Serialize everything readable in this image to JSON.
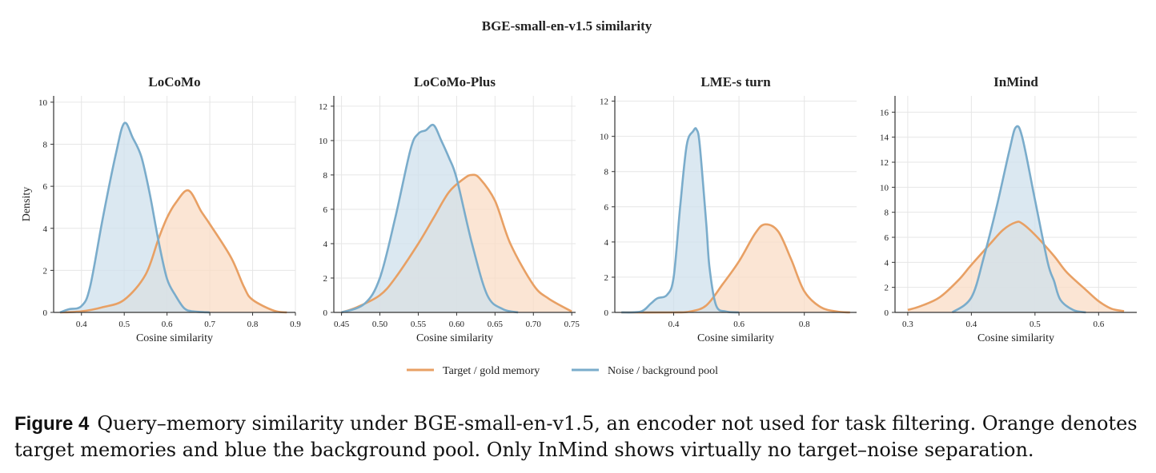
{
  "figure_title": "BGE-small-en-v1.5 similarity",
  "legend": {
    "target_label": "Target / gold memory",
    "noise_label": "Noise / background pool"
  },
  "colors": {
    "target": "#e8a064",
    "target_fill": "#f9dcc5",
    "noise": "#7aaccb",
    "noise_fill": "#cfe0ec",
    "grid": "#e6e6e6",
    "axis": "#333333"
  },
  "caption": {
    "label": "Figure 4",
    "text": "Query–memory similarity under BGE-small-en-v1.5, an encoder not used for task filtering. Orange denotes target memories and blue the background pool. Only InMind shows virtually no target–noise separation."
  },
  "chart_data": [
    {
      "type": "area",
      "title": "LoCoMo",
      "xlabel": "Cosine similarity",
      "ylabel": "Density",
      "xlim": [
        0.335,
        0.9
      ],
      "ylim": [
        0,
        10.3
      ],
      "xticks": [
        "0.4",
        "0.5",
        "0.6",
        "0.7",
        "0.8",
        "0.9"
      ],
      "yticks": [
        "0",
        "2",
        "4",
        "6",
        "8",
        "10"
      ],
      "series": [
        {
          "name": "Target / gold memory",
          "x": [
            0.35,
            0.4,
            0.45,
            0.5,
            0.55,
            0.58,
            0.6,
            0.62,
            0.65,
            0.68,
            0.7,
            0.75,
            0.78,
            0.8,
            0.85,
            0.88
          ],
          "y": [
            0.0,
            0.05,
            0.25,
            0.6,
            1.8,
            3.5,
            4.5,
            5.2,
            5.8,
            4.8,
            4.2,
            2.6,
            1.2,
            0.6,
            0.08,
            0.0
          ]
        },
        {
          "name": "Noise / background pool",
          "x": [
            0.35,
            0.37,
            0.4,
            0.42,
            0.45,
            0.48,
            0.5,
            0.52,
            0.54,
            0.56,
            0.58,
            0.6,
            0.62,
            0.64,
            0.66,
            0.7
          ],
          "y": [
            0.0,
            0.15,
            0.3,
            1.2,
            4.5,
            7.5,
            9.0,
            8.3,
            7.4,
            5.6,
            3.4,
            1.6,
            0.8,
            0.2,
            0.05,
            0.0
          ]
        }
      ]
    },
    {
      "type": "area",
      "title": "LoCoMo-Plus",
      "xlabel": "Cosine similarity",
      "ylabel": "",
      "xlim": [
        0.44,
        0.755
      ],
      "ylim": [
        0,
        12.6
      ],
      "xticks": [
        "0.45",
        "0.50",
        "0.55",
        "0.60",
        "0.65",
        "0.70",
        "0.75"
      ],
      "yticks": [
        "0",
        "2",
        "4",
        "6",
        "8",
        "10",
        "12"
      ],
      "series": [
        {
          "name": "Target / gold memory",
          "x": [
            0.45,
            0.47,
            0.5,
            0.52,
            0.55,
            0.57,
            0.59,
            0.61,
            0.62,
            0.63,
            0.65,
            0.67,
            0.7,
            0.72,
            0.75
          ],
          "y": [
            0.0,
            0.3,
            1.0,
            2.0,
            4.0,
            5.5,
            7.0,
            7.8,
            8.0,
            7.8,
            6.5,
            4.0,
            1.6,
            0.8,
            0.05
          ]
        },
        {
          "name": "Noise / background pool",
          "x": [
            0.45,
            0.48,
            0.5,
            0.52,
            0.54,
            0.55,
            0.56,
            0.57,
            0.58,
            0.59,
            0.6,
            0.62,
            0.64,
            0.66,
            0.68
          ],
          "y": [
            0.0,
            0.5,
            2.0,
            5.5,
            9.5,
            10.4,
            10.6,
            10.9,
            10.0,
            9.0,
            7.8,
            4.0,
            1.0,
            0.2,
            0.0
          ]
        }
      ]
    },
    {
      "type": "area",
      "title": "LME-s turn",
      "xlabel": "Cosine similarity",
      "ylabel": "",
      "xlim": [
        0.22,
        0.96
      ],
      "ylim": [
        0,
        12.3
      ],
      "xticks": [
        "0.4",
        "0.6",
        "0.8"
      ],
      "yticks": [
        "0",
        "2",
        "4",
        "6",
        "8",
        "10",
        "12"
      ],
      "series": [
        {
          "name": "Target / gold memory",
          "x": [
            0.24,
            0.4,
            0.45,
            0.5,
            0.55,
            0.6,
            0.65,
            0.68,
            0.72,
            0.76,
            0.8,
            0.85,
            0.9,
            0.94
          ],
          "y": [
            0.0,
            0.0,
            0.05,
            0.4,
            1.6,
            2.9,
            4.5,
            5.0,
            4.6,
            3.0,
            1.2,
            0.3,
            0.05,
            0.0
          ]
        },
        {
          "name": "Noise / background pool",
          "x": [
            0.24,
            0.3,
            0.33,
            0.35,
            0.38,
            0.4,
            0.42,
            0.44,
            0.46,
            0.47,
            0.48,
            0.5,
            0.51,
            0.53,
            0.56,
            0.6
          ],
          "y": [
            0.0,
            0.05,
            0.5,
            0.8,
            1.0,
            2.0,
            6.0,
            9.5,
            10.3,
            10.4,
            9.5,
            5.0,
            2.5,
            0.4,
            0.05,
            0.0
          ]
        }
      ]
    },
    {
      "type": "area",
      "title": "InMind",
      "xlabel": "Cosine similarity",
      "ylabel": "",
      "xlim": [
        0.28,
        0.66
      ],
      "ylim": [
        0,
        17.3
      ],
      "xticks": [
        "0.3",
        "0.4",
        "0.5",
        "0.6"
      ],
      "yticks": [
        "0",
        "2",
        "4",
        "6",
        "8",
        "10",
        "12",
        "14",
        "16"
      ],
      "series": [
        {
          "name": "Target / gold memory",
          "x": [
            0.3,
            0.32,
            0.35,
            0.38,
            0.4,
            0.43,
            0.45,
            0.47,
            0.48,
            0.5,
            0.53,
            0.55,
            0.58,
            0.6,
            0.62,
            0.64
          ],
          "y": [
            0.2,
            0.5,
            1.2,
            2.6,
            3.8,
            5.5,
            6.6,
            7.2,
            7.1,
            6.2,
            4.5,
            3.2,
            1.8,
            0.9,
            0.3,
            0.1
          ]
        },
        {
          "name": "Noise / background pool",
          "x": [
            0.37,
            0.4,
            0.42,
            0.44,
            0.46,
            0.47,
            0.48,
            0.5,
            0.52,
            0.53,
            0.54,
            0.56,
            0.58
          ],
          "y": [
            0.0,
            1.2,
            4.5,
            8.5,
            13.0,
            14.8,
            14.0,
            9.0,
            4.0,
            2.5,
            1.0,
            0.2,
            0.0
          ]
        }
      ]
    }
  ]
}
